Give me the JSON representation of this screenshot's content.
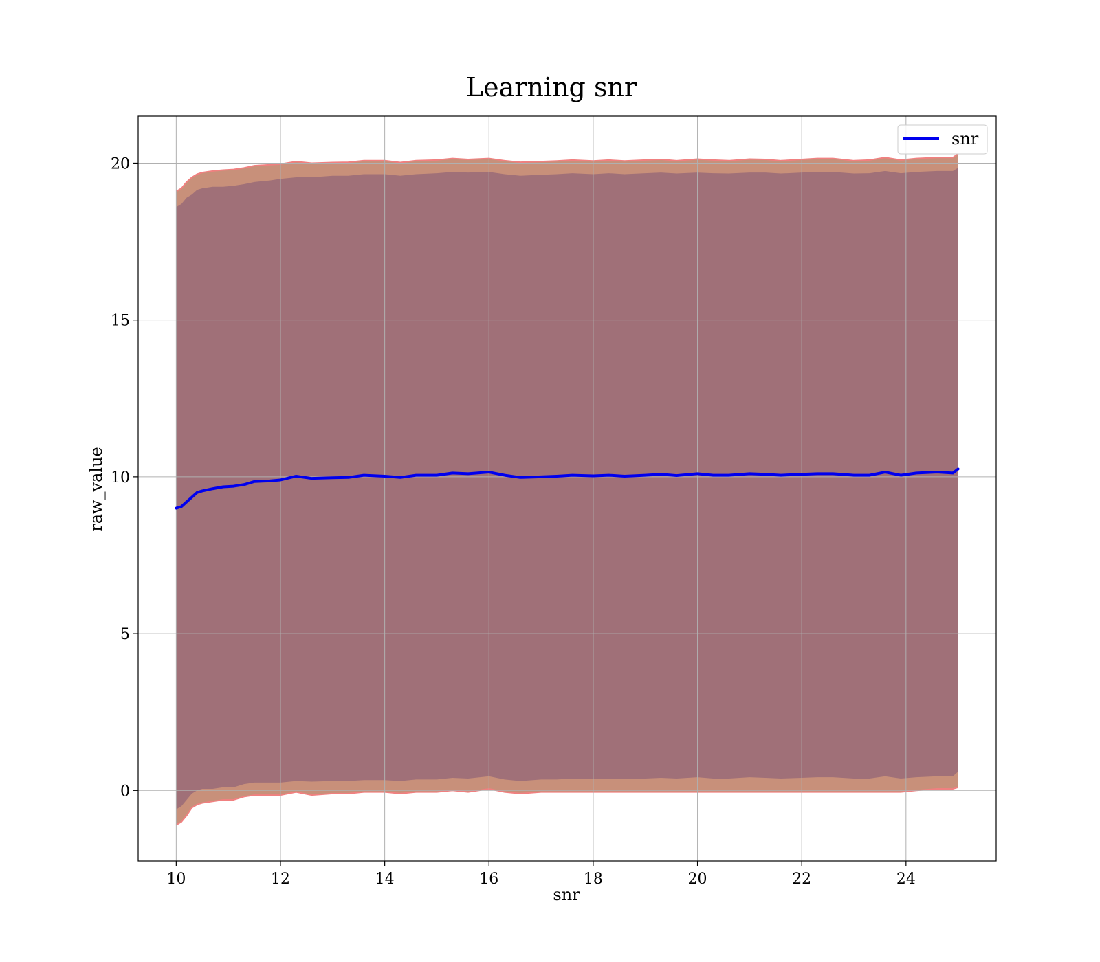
{
  "chart_data": {
    "type": "line",
    "title": "Learning snr",
    "xlabel": "snr",
    "ylabel": "raw_value",
    "xlim": [
      9.27,
      25.73
    ],
    "ylim": [
      -2.25,
      21.5
    ],
    "x_ticks": [
      10,
      12,
      14,
      16,
      18,
      20,
      22,
      24
    ],
    "y_ticks": [
      0,
      5,
      10,
      15,
      20
    ],
    "grid": true,
    "legend": {
      "placement": "top-right",
      "entries": [
        "snr"
      ]
    },
    "colors": {
      "line": "#0000ee",
      "outer_band": "#c8907a",
      "inner_band": "#a07078",
      "band_edge": "#f08080",
      "grid": "#b0b0b0"
    },
    "series": [
      {
        "name": "snr",
        "x": [
          10.0,
          10.1,
          10.2,
          10.3,
          10.4,
          10.5,
          10.7,
          10.9,
          11.1,
          11.3,
          11.5,
          11.8,
          12.0,
          12.3,
          12.6,
          13.0,
          13.3,
          13.6,
          14.0,
          14.3,
          14.6,
          15.0,
          15.3,
          15.6,
          16.0,
          16.3,
          16.6,
          17.0,
          17.3,
          17.6,
          18.0,
          18.3,
          18.6,
          19.0,
          19.3,
          19.6,
          20.0,
          20.3,
          20.6,
          21.0,
          21.3,
          21.6,
          22.0,
          22.3,
          22.6,
          23.0,
          23.3,
          23.6,
          23.9,
          24.2,
          24.6,
          24.9,
          25.0
        ],
        "values": [
          9.0,
          9.05,
          9.2,
          9.35,
          9.5,
          9.55,
          9.62,
          9.68,
          9.7,
          9.75,
          9.85,
          9.87,
          9.9,
          10.02,
          9.95,
          9.97,
          9.98,
          10.05,
          10.02,
          9.98,
          10.05,
          10.05,
          10.12,
          10.1,
          10.15,
          10.05,
          9.98,
          10.0,
          10.02,
          10.05,
          10.03,
          10.05,
          10.02,
          10.05,
          10.08,
          10.04,
          10.1,
          10.05,
          10.05,
          10.1,
          10.08,
          10.05,
          10.08,
          10.1,
          10.1,
          10.05,
          10.05,
          10.15,
          10.05,
          10.12,
          10.15,
          10.12,
          10.25
        ],
        "outer_lower": [
          -1.1,
          -1.0,
          -0.8,
          -0.55,
          -0.45,
          -0.4,
          -0.35,
          -0.3,
          -0.3,
          -0.2,
          -0.15,
          -0.15,
          -0.15,
          -0.05,
          -0.15,
          -0.1,
          -0.1,
          -0.05,
          -0.05,
          -0.1,
          -0.05,
          -0.05,
          0.0,
          -0.05,
          0.05,
          -0.05,
          -0.1,
          -0.05,
          -0.05,
          -0.05,
          -0.05,
          -0.05,
          -0.05,
          -0.05,
          -0.05,
          -0.05,
          -0.05,
          -0.05,
          -0.05,
          -0.05,
          -0.05,
          -0.05,
          -0.05,
          -0.05,
          -0.05,
          -0.05,
          -0.05,
          -0.05,
          -0.05,
          0.0,
          0.05,
          0.05,
          0.1
        ],
        "inner_lower": [
          -0.6,
          -0.5,
          -0.3,
          -0.1,
          0.0,
          0.05,
          0.05,
          0.1,
          0.1,
          0.2,
          0.25,
          0.25,
          0.25,
          0.3,
          0.28,
          0.3,
          0.3,
          0.33,
          0.33,
          0.3,
          0.35,
          0.35,
          0.4,
          0.38,
          0.45,
          0.35,
          0.3,
          0.35,
          0.35,
          0.38,
          0.38,
          0.38,
          0.38,
          0.38,
          0.4,
          0.38,
          0.42,
          0.38,
          0.38,
          0.42,
          0.4,
          0.38,
          0.4,
          0.42,
          0.42,
          0.38,
          0.38,
          0.45,
          0.38,
          0.42,
          0.45,
          0.45,
          0.6
        ],
        "inner_upper": [
          18.6,
          18.7,
          18.9,
          19.0,
          19.15,
          19.2,
          19.25,
          19.25,
          19.28,
          19.33,
          19.4,
          19.45,
          19.5,
          19.55,
          19.55,
          19.6,
          19.6,
          19.65,
          19.65,
          19.6,
          19.65,
          19.68,
          19.72,
          19.7,
          19.72,
          19.65,
          19.6,
          19.63,
          19.65,
          19.68,
          19.65,
          19.68,
          19.65,
          19.68,
          19.7,
          19.67,
          19.7,
          19.68,
          19.67,
          19.7,
          19.7,
          19.67,
          19.7,
          19.72,
          19.72,
          19.67,
          19.68,
          19.75,
          19.68,
          19.72,
          19.75,
          19.75,
          19.85
        ],
        "outer_upper": [
          19.1,
          19.2,
          19.4,
          19.55,
          19.65,
          19.7,
          19.75,
          19.78,
          19.8,
          19.85,
          19.92,
          19.95,
          19.97,
          20.05,
          20.0,
          20.02,
          20.03,
          20.08,
          20.08,
          20.02,
          20.08,
          20.1,
          20.15,
          20.12,
          20.15,
          20.08,
          20.03,
          20.05,
          20.07,
          20.1,
          20.07,
          20.1,
          20.07,
          20.1,
          20.12,
          20.08,
          20.13,
          20.1,
          20.08,
          20.13,
          20.12,
          20.08,
          20.12,
          20.15,
          20.15,
          20.08,
          20.1,
          20.18,
          20.1,
          20.15,
          20.18,
          20.18,
          20.3
        ]
      }
    ]
  }
}
